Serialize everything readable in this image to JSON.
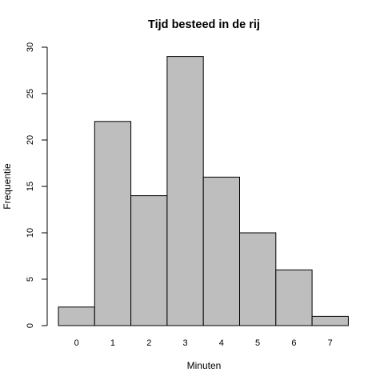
{
  "chart_data": {
    "type": "bar",
    "title": "Tijd besteed in de rij",
    "xlabel": "Minuten",
    "ylabel": "Frequentie",
    "categories": [
      "0",
      "1",
      "2",
      "3",
      "4",
      "5",
      "6",
      "7"
    ],
    "values": [
      2,
      22,
      14,
      29,
      16,
      10,
      6,
      1
    ],
    "ylim": [
      0,
      30
    ],
    "yticks": [
      "0",
      "5",
      "10",
      "15",
      "20",
      "25",
      "30"
    ],
    "grid": false,
    "colors": {
      "bar_fill": "#bebebe",
      "bar_stroke": "#000000"
    }
  }
}
